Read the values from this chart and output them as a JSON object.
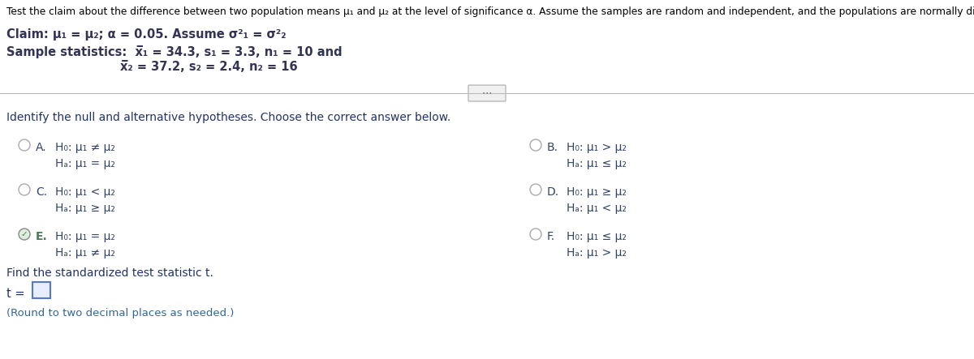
{
  "bg_color": "#ffffff",
  "header_text": "Test the claim about the difference between two population means μ₁ and μ₂ at the level of significance α. Assume the samples are random and independent, and the populations are normally distributed.",
  "claim_line1_a": "Claim: μ₁ = μ₂; α = 0.05. Assume σ",
  "claim_line1_b": "2",
  "claim_line1_c": "1",
  "claim_line1_d": " = σ",
  "claim_line1_e": "2",
  "claim_line1_f": "2",
  "claim_line2": "Sample statistics:  x̅₁ = 34.3, s₁ = 3.3, n₁ = 10 and",
  "claim_line3": "x̅₂ = 37.2, s₂ = 2.4, n₂ = 16",
  "identify_text": "Identify the null and alternative hypotheses. Choose the correct answer below.",
  "option_A_line1": "H₀: μ₁ ≠ μ₂",
  "option_A_line2": "Hₐ: μ₁ = μ₂",
  "option_B_line1": "H₀: μ₁ > μ₂",
  "option_B_line2": "Hₐ: μ₁ ≤ μ₂",
  "option_C_line1": "H₀: μ₁ < μ₂",
  "option_C_line2": "Hₐ: μ₁ ≥ μ₂",
  "option_D_line1": "H₀: μ₁ ≥ μ₂",
  "option_D_line2": "Hₐ: μ₁ < μ₂",
  "option_E_line1": "H₀: μ₁ = μ₂",
  "option_E_line2": "Hₐ: μ₁ ≠ μ₂",
  "option_F_line1": "H₀: μ₁ ≤ μ₂",
  "option_F_line2": "Hₐ: μ₁ > μ₂",
  "find_text": "Find the standardized test statistic t.",
  "t_label": "t =",
  "round_text": "(Round to two decimal places as needed.)",
  "text_color": "#1a1a2e",
  "body_color": "#333355",
  "header_color": "#000000",
  "option_text_color": "#334466",
  "selected_color": "#4a7c59",
  "unselected_circle_color": "#aaaaaa",
  "selected_circle_fill": "#ddeedd",
  "check_color": "#4a7c59",
  "find_color": "#223366",
  "round_color": "#336699",
  "box_edge_color": "#5577cc",
  "box_fill_color": "#e8eeff"
}
